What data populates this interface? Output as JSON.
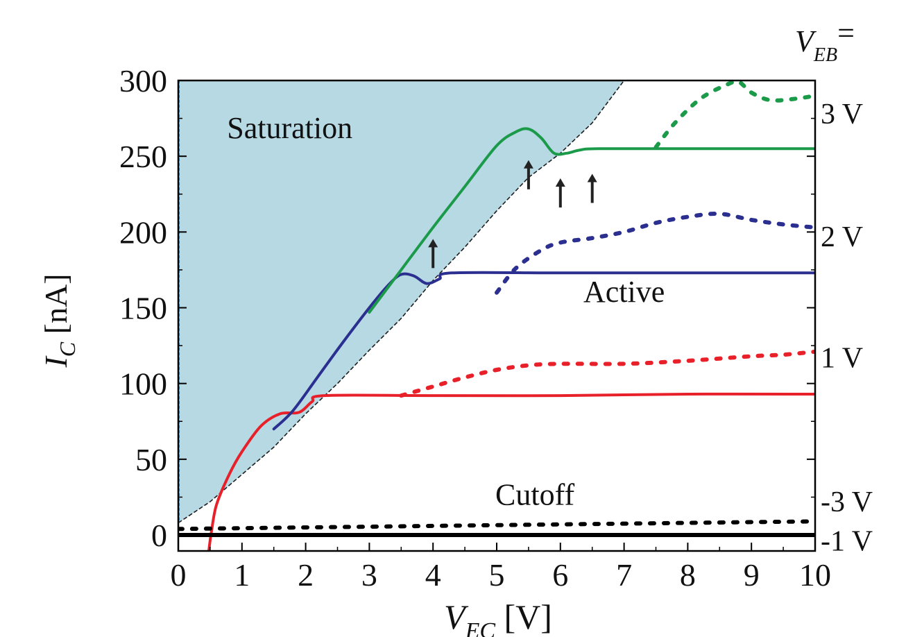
{
  "chart_data": {
    "type": "line",
    "xlabel": {
      "main": "V",
      "sub": "EC",
      "unit": "[V]"
    },
    "ylabel": {
      "main": "I",
      "sub": "C",
      "unit": "[nA]"
    },
    "right_header": {
      "main": "V",
      "sub": "EB",
      "suffix": "="
    },
    "xlim": [
      0,
      10
    ],
    "ylim": [
      -10,
      300
    ],
    "x_ticks": [
      0,
      1,
      2,
      3,
      4,
      5,
      6,
      7,
      8,
      9,
      10
    ],
    "y_ticks": [
      0,
      50,
      100,
      150,
      200,
      250,
      300
    ],
    "grid": false,
    "regions": [
      {
        "name": "Saturation",
        "label_at": [
          1.75,
          262
        ]
      },
      {
        "name": "Active",
        "label_at": [
          7.0,
          154
        ]
      },
      {
        "name": "Cutoff",
        "label_at": [
          5.6,
          20
        ]
      }
    ],
    "saturation_boundary": [
      [
        0,
        8
      ],
      [
        0.5,
        22
      ],
      [
        1,
        40
      ],
      [
        1.5,
        58
      ],
      [
        2,
        80
      ],
      [
        2.5,
        100
      ],
      [
        3,
        122
      ],
      [
        3.5,
        143
      ],
      [
        4,
        168
      ],
      [
        4.5,
        190
      ],
      [
        5,
        214
      ],
      [
        5.5,
        236
      ],
      [
        6,
        252
      ],
      [
        6.5,
        272
      ],
      [
        7,
        300
      ]
    ],
    "series": [
      {
        "style": "solid",
        "color": "#e8202a",
        "group": "1 V",
        "points": [
          [
            0.48,
            -10
          ],
          [
            0.52,
            2
          ],
          [
            0.6,
            20
          ],
          [
            0.8,
            40
          ],
          [
            1.0,
            55
          ],
          [
            1.3,
            72
          ],
          [
            1.6,
            80
          ],
          [
            1.9,
            81
          ],
          [
            2.1,
            88
          ],
          [
            2.3,
            92
          ],
          [
            4,
            92
          ],
          [
            6,
            92
          ],
          [
            8,
            93
          ],
          [
            10,
            93
          ]
        ]
      },
      {
        "style": "dotted",
        "color": "#e8202a",
        "group": "1 V",
        "points": [
          [
            3.5,
            92
          ],
          [
            4.0,
            98
          ],
          [
            4.5,
            104
          ],
          [
            5.0,
            109
          ],
          [
            5.5,
            112
          ],
          [
            6.0,
            113
          ],
          [
            7.0,
            113
          ],
          [
            8.0,
            115
          ],
          [
            9.0,
            118
          ],
          [
            9.5,
            119
          ],
          [
            10.0,
            121
          ]
        ]
      },
      {
        "style": "solid",
        "color": "#2b2f8f",
        "group": "2 V",
        "points": [
          [
            1.5,
            70
          ],
          [
            1.8,
            82
          ],
          [
            2.2,
            105
          ],
          [
            2.6,
            128
          ],
          [
            3.0,
            150
          ],
          [
            3.3,
            165
          ],
          [
            3.5,
            172
          ],
          [
            3.7,
            171
          ],
          [
            3.9,
            166
          ],
          [
            4.1,
            169
          ],
          [
            4.3,
            173
          ],
          [
            6,
            173
          ],
          [
            8,
            173
          ],
          [
            10,
            173
          ]
        ]
      },
      {
        "style": "dotted",
        "color": "#2b2f8f",
        "group": "2 V",
        "points": [
          [
            5.0,
            160
          ],
          [
            5.3,
            176
          ],
          [
            5.7,
            188
          ],
          [
            6.0,
            193
          ],
          [
            6.5,
            196
          ],
          [
            7.0,
            200
          ],
          [
            7.5,
            206
          ],
          [
            8.0,
            210
          ],
          [
            8.5,
            212
          ],
          [
            9.0,
            208
          ],
          [
            9.5,
            205
          ],
          [
            10.0,
            203
          ]
        ]
      },
      {
        "style": "solid",
        "color": "#1b9a4a",
        "group": "3 V",
        "points": [
          [
            3.0,
            147
          ],
          [
            3.5,
            175
          ],
          [
            4.0,
            203
          ],
          [
            4.5,
            230
          ],
          [
            5.0,
            257
          ],
          [
            5.3,
            266
          ],
          [
            5.5,
            268
          ],
          [
            5.7,
            262
          ],
          [
            5.9,
            252
          ],
          [
            6.1,
            252
          ],
          [
            6.3,
            254
          ],
          [
            6.6,
            255
          ],
          [
            8,
            255
          ],
          [
            10,
            255
          ]
        ]
      },
      {
        "style": "dotted",
        "color": "#1b9a4a",
        "group": "3 V",
        "points": [
          [
            7.5,
            256
          ],
          [
            7.8,
            272
          ],
          [
            8.2,
            288
          ],
          [
            8.6,
            297
          ],
          [
            8.8,
            299
          ],
          [
            9.0,
            292
          ],
          [
            9.3,
            287
          ],
          [
            9.7,
            288
          ],
          [
            10.0,
            290
          ]
        ]
      },
      {
        "style": "dotted",
        "color": "#000000",
        "group": "-3 V",
        "points": [
          [
            0,
            4
          ],
          [
            2,
            5
          ],
          [
            4,
            6
          ],
          [
            6,
            7
          ],
          [
            8,
            8
          ],
          [
            10,
            9
          ]
        ]
      },
      {
        "style": "solid",
        "color": "#000000",
        "group": "-1 V",
        "points": [
          [
            0,
            0
          ],
          [
            10,
            0
          ]
        ]
      }
    ],
    "arrows": [
      [
        4.0,
        200
      ],
      [
        5.5,
        252
      ],
      [
        6.0,
        240
      ],
      [
        6.5,
        243
      ]
    ],
    "right_labels": [
      {
        "text": "3 V",
        "y": 278
      },
      {
        "text": "2 V",
        "y": 197
      },
      {
        "text": "1 V",
        "y": 117
      },
      {
        "text": "-3 V",
        "y": 22
      },
      {
        "text": "-1 V",
        "y": -4
      }
    ]
  }
}
